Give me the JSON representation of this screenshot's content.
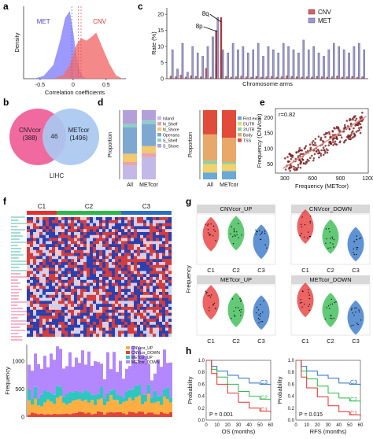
{
  "panels": {
    "a": "a",
    "b": "b",
    "c": "c",
    "d": "d",
    "e": "e",
    "f": "f",
    "g": "g",
    "h": "h"
  },
  "colors": {
    "met": "#8b87ff",
    "cnv": "#f26b6b",
    "venn_cnv": "#f06aa0",
    "venn_met": "#a9c8f0",
    "red": "#e53030",
    "green": "#2db84a",
    "blue": "#2b6fc4"
  },
  "chart_data": [
    {
      "id": "a",
      "type": "area",
      "ylabel": "Density",
      "xlabel": "Correlation coefficients",
      "xticks": [
        "-0.5",
        "0",
        "0.5"
      ],
      "series": [
        {
          "name": "MET",
          "color": "#8b87ff",
          "x": [
            -0.6,
            -0.45,
            -0.3,
            -0.2,
            -0.12,
            -0.05,
            0.0,
            0.05,
            0.1,
            0.15,
            0.22
          ],
          "y": [
            0,
            0.04,
            0.2,
            0.55,
            0.9,
            1.0,
            0.7,
            0.35,
            0.12,
            0.03,
            0
          ]
        },
        {
          "name": "CNV",
          "color": "#f26b6b",
          "x": [
            -0.3,
            -0.15,
            -0.05,
            0.05,
            0.12,
            0.2,
            0.28,
            0.35,
            0.45,
            0.55,
            0.65,
            0.75
          ],
          "y": [
            0,
            0.05,
            0.2,
            0.5,
            0.6,
            0.56,
            0.62,
            0.68,
            0.45,
            0.22,
            0.05,
            0
          ]
        }
      ]
    },
    {
      "id": "b",
      "type": "venn",
      "sets": [
        {
          "name": "CNVcor",
          "count": "(388)"
        },
        {
          "name": "METcor",
          "count": "(1496)"
        }
      ],
      "overlap": "46",
      "caption": "LIHC"
    },
    {
      "id": "c",
      "type": "bar",
      "ylabel": "Rate (%)",
      "xlabel": "Chromosome arms",
      "yticks": [
        "0",
        "5",
        "10",
        "15",
        "20"
      ],
      "legend": [
        "CNV",
        "MET"
      ],
      "annotations": [
        "8q",
        "8p"
      ],
      "cnv": [
        0.8,
        0.6,
        1.1,
        0.5,
        0.9,
        0.7,
        0.6,
        3.2,
        0.5,
        4.5,
        8.0,
        0.7,
        0.5,
        0.6,
        0.8,
        0.6,
        0.5,
        0.7,
        0.5,
        0.6,
        0.7,
        0.5,
        0.6,
        0.9,
        0.7,
        0.6,
        0.5,
        0.6,
        0.5,
        0.7,
        0.6,
        0.5,
        0.6,
        0.8,
        0.5,
        0.6,
        0.7,
        0.5,
        0.6
      ],
      "met": [
        9,
        3,
        11,
        2,
        10,
        8,
        7,
        10,
        13,
        19,
        9,
        8,
        11,
        9,
        10,
        8,
        9,
        11,
        7,
        10,
        9,
        8,
        11,
        10,
        9,
        8,
        12,
        9,
        10,
        8,
        7,
        9,
        11,
        10,
        9,
        8,
        10,
        11,
        9
      ]
    },
    {
      "id": "d1",
      "type": "bar",
      "stacked": true,
      "ylabel": "Proportion",
      "categories": [
        "All",
        "METcor"
      ],
      "legend": [
        "Island",
        "N_Shelf",
        "N_Shore",
        "Opensea",
        "S_Shelf",
        "S_Shore"
      ],
      "colors": [
        "#c3b9e6",
        "#e9a3b0",
        "#f2c96f",
        "#7fa8d0",
        "#8fd0c4",
        "#b4a0d8"
      ],
      "series": [
        [
          0.2,
          0.32
        ],
        [
          0.05,
          0.06
        ],
        [
          0.12,
          0.1
        ],
        [
          0.38,
          0.32
        ],
        [
          0.05,
          0.05
        ],
        [
          0.2,
          0.15
        ]
      ]
    },
    {
      "id": "d2",
      "type": "bar",
      "stacked": true,
      "ylabel": "Proportion",
      "categories": [
        "All",
        "METcor"
      ],
      "legend": [
        "First exon",
        "5'UTR",
        "3'UTR",
        "Body",
        "TSS"
      ],
      "colors": [
        "#6aa8d8",
        "#f4d26a",
        "#8fd0a0",
        "#e8a86a",
        "#e24a3a"
      ],
      "series": [
        [
          0.1,
          0.12
        ],
        [
          0.12,
          0.1
        ],
        [
          0.05,
          0.03
        ],
        [
          0.38,
          0.35
        ],
        [
          0.35,
          0.4
        ]
      ]
    },
    {
      "id": "e",
      "type": "scatter",
      "r": "r=0.82",
      "xlabel": "Frequency (METcor)",
      "ylabel": "Frequency (CNVcor)",
      "xticks": [
        "300",
        "600",
        "900",
        "1200"
      ],
      "yticks": [
        "50",
        "100",
        "150",
        "200"
      ],
      "xlim": [
        200,
        1200
      ],
      "ylim": [
        20,
        230
      ]
    },
    {
      "id": "f",
      "type": "heatmap",
      "clusters": [
        "C1",
        "C2",
        "C3"
      ],
      "cluster_colors": [
        "#e53030",
        "#2db84a",
        "#2b6fc4"
      ],
      "ylabel": "Frequency",
      "yticks": [
        "0",
        "500",
        "1000"
      ],
      "legend": [
        "CNVcor_UP",
        "CNVcor_DOWN",
        "METcor_UP",
        "METcor_DOWN"
      ],
      "legend_colors": [
        "#ffae42",
        "#e0453a",
        "#2ec6c0",
        "#b388ff"
      ]
    },
    {
      "id": "g",
      "type": "violin",
      "ylabel": "Frequency",
      "categories": [
        "C1",
        "C2",
        "C3"
      ],
      "panels": [
        {
          "title": "CNVcor_UP",
          "median": [
            0.6,
            0.62,
            0.45
          ]
        },
        {
          "title": "CNVcor_DOWN",
          "median": [
            0.75,
            0.55,
            0.4
          ]
        },
        {
          "title": "METcor_UP",
          "median": [
            0.65,
            0.5,
            0.45
          ]
        },
        {
          "title": "METcor_DOWN",
          "median": [
            0.7,
            0.5,
            0.35
          ]
        }
      ]
    },
    {
      "id": "h",
      "type": "line",
      "panels": [
        {
          "xlabel": "OS (months)",
          "ylabel": "Probability",
          "p": "P = 0.001",
          "xticks": [
            "0",
            "10",
            "20",
            "30",
            "40",
            "50",
            "60"
          ],
          "yticks": [
            "0.0",
            "0.2",
            "0.4",
            "0.6",
            "0.8",
            "1.0"
          ],
          "labels": [
            "C3",
            "C2",
            "C1"
          ]
        },
        {
          "xlabel": "RFS (months)",
          "ylabel": "Probability",
          "p": "P = 0.015",
          "xticks": [
            "0",
            "10",
            "20",
            "30",
            "40",
            "50",
            "60"
          ],
          "yticks": [
            "0.0",
            "0.2",
            "0.4",
            "0.6",
            "0.8",
            "1.0"
          ],
          "labels": [
            "C3",
            "C2",
            "C1"
          ]
        }
      ]
    }
  ]
}
